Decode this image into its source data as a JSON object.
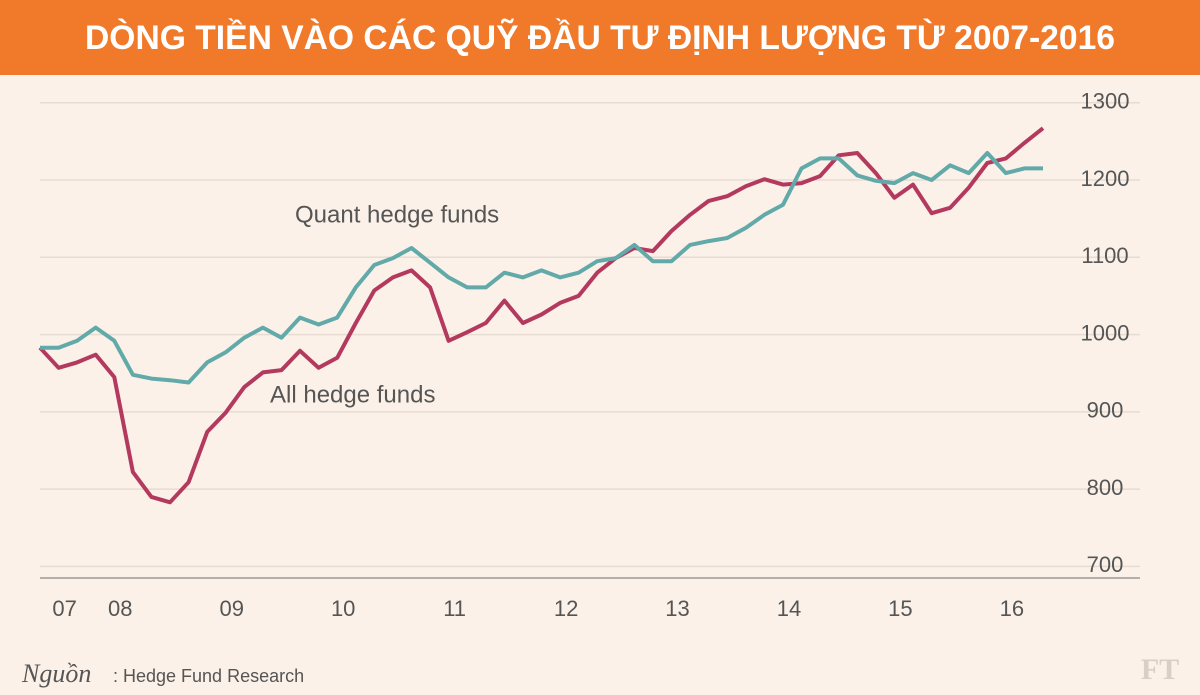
{
  "chart_data": {
    "type": "line",
    "title": "DÒNG TIỀN VÀO CÁC QUỸ ĐẦU TƯ ĐỊNH LƯỢNG TỪ 2007-2016",
    "categories": [
      null,
      "07",
      null,
      null,
      "08",
      null,
      null,
      null,
      null,
      null,
      "09",
      null,
      null,
      null,
      null,
      null,
      "10",
      null,
      null,
      null,
      null,
      null,
      "11",
      null,
      null,
      null,
      null,
      null,
      "12",
      null,
      null,
      null,
      null,
      null,
      "13",
      null,
      null,
      null,
      null,
      null,
      "14",
      null,
      null,
      null,
      null,
      null,
      "15",
      null,
      null,
      null,
      null,
      null,
      "16",
      null,
      null
    ],
    "series": [
      {
        "name": "All hedge funds",
        "color": "#b3395f",
        "values": [
          983,
          957,
          964,
          974,
          945,
          822,
          790,
          783,
          809,
          874,
          899,
          932,
          951,
          954,
          979,
          957,
          970,
          1015,
          1057,
          1074,
          1083,
          1061,
          992,
          1003,
          1015,
          1044,
          1015,
          1026,
          1041,
          1050,
          1080,
          1099,
          1112,
          1108,
          1134,
          1155,
          1173,
          1179,
          1192,
          1201,
          1194,
          1196,
          1205,
          1232,
          1235,
          1209,
          1177,
          1194,
          1157,
          1164,
          1190,
          1222,
          1228,
          1248,
          1267
        ]
      },
      {
        "name": "Quant hedge funds",
        "color": "#62aaa9",
        "values": [
          983,
          983,
          992,
          1009,
          992,
          948,
          943,
          941,
          938,
          964,
          977,
          996,
          1009,
          996,
          1022,
          1013,
          1022,
          1061,
          1090,
          1099,
          1112,
          1093,
          1074,
          1061,
          1061,
          1080,
          1074,
          1083,
          1074,
          1080,
          1095,
          1099,
          1116,
          1095,
          1095,
          1116,
          1121,
          1125,
          1138,
          1155,
          1168,
          1215,
          1228,
          1228,
          1206,
          1199,
          1196,
          1209,
          1200,
          1219,
          1209,
          1235,
          1209,
          1215,
          1215
        ]
      }
    ],
    "ylim": [
      685,
      1310
    ],
    "yticks": [
      700,
      800,
      900,
      1000,
      1100,
      1200,
      1300
    ],
    "grid": true,
    "source_prefix": "Nguồn",
    "source": ": Hedge Fund Research",
    "logo": "FT"
  }
}
